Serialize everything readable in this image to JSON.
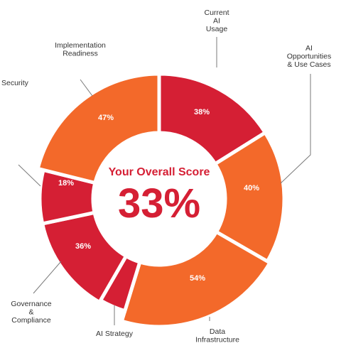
{
  "chart_data": {
    "type": "pie",
    "center_title": "Your Overall Score",
    "center_value": "33%",
    "colors": {
      "red": "#d51f34",
      "orange": "#f3692a"
    },
    "segments": [
      {
        "category": [
          "Current",
          "AI",
          "Usage"
        ],
        "value_label": "38%",
        "value": 38,
        "color": "#d51f34"
      },
      {
        "category": [
          "AI",
          "Opportunities",
          "& Use Cases"
        ],
        "value_label": "40%",
        "value": 40,
        "color": "#f3692a"
      },
      {
        "category": [
          "Data",
          "Infrastructure"
        ],
        "value_label": "54%",
        "value": 54,
        "color": "#f3692a"
      },
      {
        "category": [
          "AI Strategy"
        ],
        "value_label": "",
        "value": null,
        "color": "#d51f34"
      },
      {
        "category": [
          "Governance",
          "&",
          "Compliance"
        ],
        "value_label": "36%",
        "value": 36,
        "color": "#d51f34"
      },
      {
        "category": [
          "Security"
        ],
        "value_label": "18%",
        "value": 18,
        "color": "#d51f34"
      },
      {
        "category": [
          "Implementation",
          "Readiness"
        ],
        "value_label": "47%",
        "value": 47,
        "color": "#f3692a"
      }
    ]
  }
}
